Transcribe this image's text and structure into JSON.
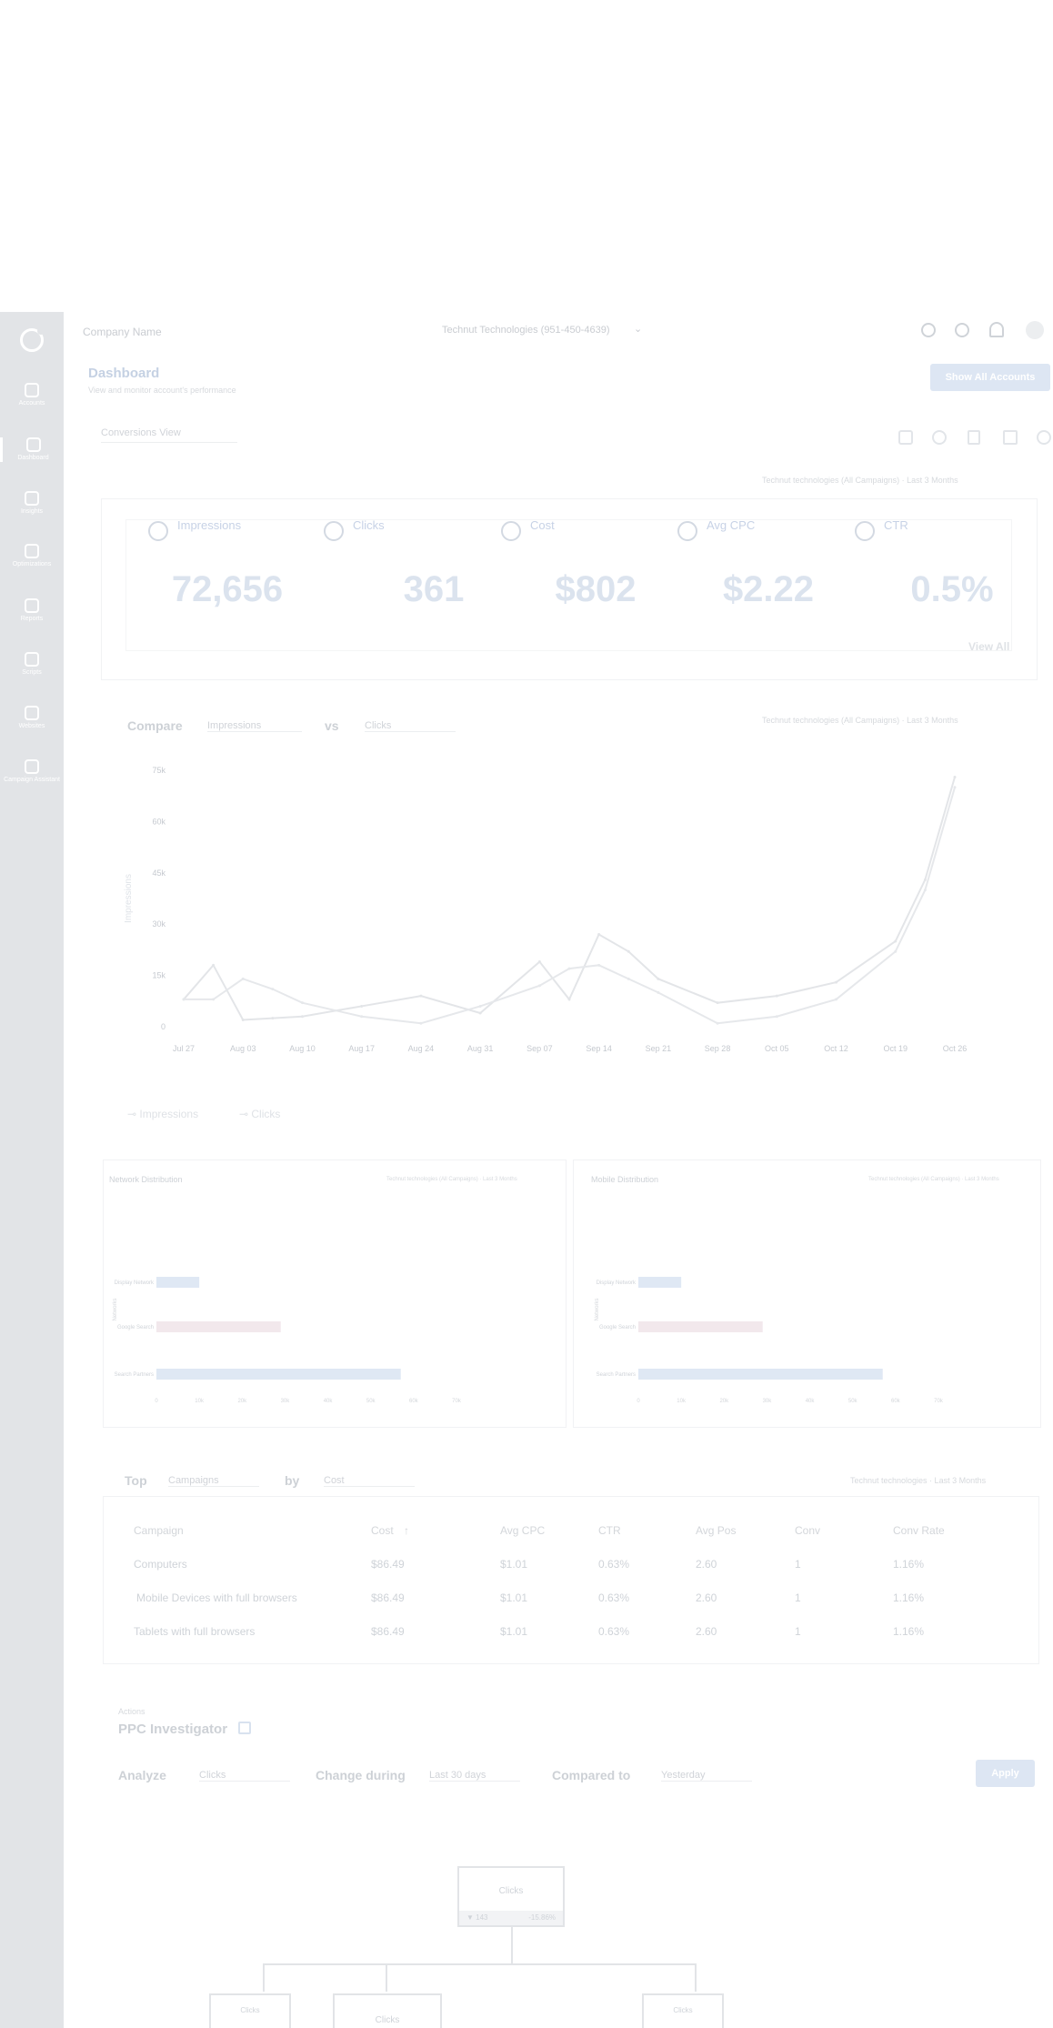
{
  "sidebar": {
    "items": [
      {
        "label": "Accounts",
        "icon": "accounts-icon"
      },
      {
        "label": "Dashboard",
        "icon": "dashboard-icon"
      },
      {
        "label": "Insights",
        "icon": "insights-icon"
      },
      {
        "label": "Optimizations",
        "icon": "optimizations-icon"
      },
      {
        "label": "Reports",
        "icon": "reports-icon"
      },
      {
        "label": "Scripts",
        "icon": "scripts-icon"
      },
      {
        "label": "Websites",
        "icon": "websites-icon"
      },
      {
        "label": "Campaign Assistant",
        "icon": "campaign-assistant-icon"
      }
    ]
  },
  "header": {
    "company": "Company Name",
    "account": "Technut Technologies (951-450-4639)"
  },
  "page": {
    "title": "Dashboard",
    "subtitle": "View and monitor account's performance",
    "show_all": "Show All Accounts",
    "view_select": "Conversions View"
  },
  "scope": "Technut technologies (All Campaigns) · Last 3 Months",
  "kpis": [
    {
      "label": "Impressions",
      "value": "72,656"
    },
    {
      "label": "Clicks",
      "value": "361"
    },
    {
      "label": "Cost",
      "value": "$802"
    },
    {
      "label": "Avg CPC",
      "value": "$2.22"
    },
    {
      "label": "CTR",
      "value": "0.5%"
    }
  ],
  "view_all": "View All",
  "compare": {
    "label": "Compare",
    "metric1": "Impressions",
    "vs": "vs",
    "metric2": "Clicks"
  },
  "chart_data": [
    {
      "type": "line",
      "ylabel": "Impressions",
      "ylim": [
        0,
        75000
      ],
      "yticks": [
        "0",
        "15k",
        "30k",
        "45k",
        "60k",
        "75k"
      ],
      "categories": [
        "Jul 27",
        "Aug 03",
        "Aug 10",
        "Aug 17",
        "Aug 24",
        "Aug 31",
        "Sep 07",
        "Sep 14",
        "Sep 21",
        "Sep 28",
        "Oct 05",
        "Oct 12",
        "Oct 19",
        "Oct 26"
      ],
      "x": [
        0,
        0.5,
        1,
        1.5,
        2,
        3,
        4,
        5,
        6,
        6.5,
        7,
        7.5,
        8,
        9,
        10,
        11,
        12,
        12.5,
        13
      ],
      "series": [
        {
          "name": "Impressions",
          "values": [
            8000,
            18000,
            2000,
            2500,
            3000,
            6000,
            9000,
            4000,
            19000,
            8000,
            27000,
            22000,
            14000,
            7000,
            9000,
            13000,
            25000,
            43000,
            73000
          ]
        },
        {
          "name": "Clicks",
          "values": [
            8000,
            8000,
            14000,
            11000,
            7000,
            3000,
            1000,
            6000,
            12000,
            17000,
            18000,
            14000,
            10000,
            1000,
            3000,
            8000,
            22000,
            40000,
            70000
          ]
        }
      ],
      "legend": "bottom-left"
    },
    {
      "type": "bar",
      "title": "Network Distribution",
      "orientation": "horizontal",
      "ylabel": "Networks",
      "categories": [
        "Display Network",
        "Google Search",
        "Search Partners"
      ],
      "values": [
        10,
        29,
        57
      ],
      "xticks": [
        "0",
        "10k",
        "20k",
        "30k",
        "40k",
        "50k",
        "60k",
        "70k"
      ],
      "xlim": [
        0,
        70
      ]
    },
    {
      "type": "bar",
      "title": "Mobile Distribution",
      "orientation": "horizontal",
      "ylabel": "Networks",
      "categories": [
        "Display Network",
        "Google Search",
        "Search Partners"
      ],
      "values": [
        10,
        29,
        57
      ],
      "xticks": [
        "0",
        "10k",
        "20k",
        "30k",
        "40k",
        "50k",
        "60k",
        "70k"
      ],
      "xlim": [
        0,
        70
      ]
    }
  ],
  "top": {
    "label": "Top",
    "dim": "Campaigns",
    "by": "by",
    "metric": "Cost",
    "scope": "Technut technologies · Last 3 Months",
    "columns": [
      "Campaign",
      "Cost",
      "Avg CPC",
      "CTR",
      "Avg Pos",
      "Conv",
      "Conv Rate"
    ],
    "rows": [
      [
        "Computers",
        "$86.49",
        "$1.01",
        "0.63%",
        "2.60",
        "1",
        "1.16%"
      ],
      [
        "Mobile Devices with full browsers",
        "$86.49",
        "$1.01",
        "0.63%",
        "2.60",
        "1",
        "1.16%"
      ],
      [
        "Tablets with full browsers",
        "$86.49",
        "$1.01",
        "0.63%",
        "2.60",
        "1",
        "1.16%"
      ]
    ]
  },
  "ppc": {
    "kicker": "Actions",
    "title": "PPC Investigator",
    "analyze": "Analyze",
    "analyze_val": "Clicks",
    "change": "Change during",
    "change_val": "Last 30 days",
    "compared": "Compared to",
    "compared_val": "Yesterday",
    "apply": "Apply",
    "root": {
      "label": "Clicks",
      "left": "▼ 143",
      "right": "-15.86%"
    },
    "children": [
      "Clicks",
      "Clicks",
      "Clicks"
    ]
  }
}
